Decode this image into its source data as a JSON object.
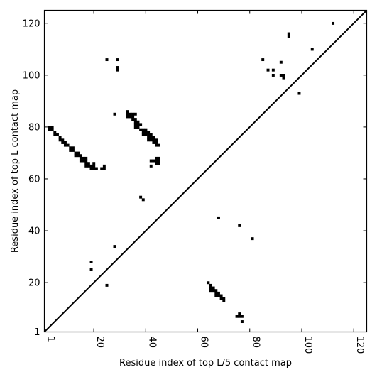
{
  "chart_data": {
    "type": "scatter",
    "title": "",
    "xlabel": "Residue index of top L/5 contact map",
    "ylabel": "Residue index of top L contact map",
    "xlim": [
      1,
      125
    ],
    "ylim": [
      1,
      125
    ],
    "x_ticks": [
      1,
      20,
      40,
      60,
      80,
      100,
      120
    ],
    "x_tick_labels": [
      "1",
      "20",
      "40",
      "60",
      "80",
      "100",
      "120"
    ],
    "y_ticks": [
      1,
      20,
      40,
      60,
      80,
      100,
      120
    ],
    "y_tick_labels": [
      "1",
      "20",
      "40",
      "60",
      "80",
      "100",
      "120"
    ],
    "grid": false,
    "diagonal": true,
    "colors": {
      "marker": "#000000",
      "axis": "#000000",
      "background": "#ffffff"
    },
    "series": [
      {
        "region": "upper",
        "points": [
          [
            3,
            80
          ],
          [
            4,
            80
          ],
          [
            3,
            79
          ],
          [
            4,
            79
          ],
          [
            5,
            78
          ],
          [
            5,
            77
          ],
          [
            6,
            77
          ],
          [
            7,
            76
          ],
          [
            7,
            75
          ],
          [
            8,
            75
          ],
          [
            8,
            74
          ],
          [
            9,
            74
          ],
          [
            9,
            73
          ],
          [
            10,
            73
          ],
          [
            11,
            72
          ],
          [
            11,
            71
          ],
          [
            12,
            72
          ],
          [
            12,
            71
          ],
          [
            13,
            70
          ],
          [
            13,
            69
          ],
          [
            14,
            70
          ],
          [
            14,
            69
          ],
          [
            15,
            69
          ],
          [
            15,
            68
          ],
          [
            15,
            67
          ],
          [
            16,
            68
          ],
          [
            16,
            67
          ],
          [
            17,
            68
          ],
          [
            17,
            67
          ],
          [
            17,
            66
          ],
          [
            17,
            65
          ],
          [
            18,
            66
          ],
          [
            18,
            65
          ],
          [
            19,
            65
          ],
          [
            19,
            64
          ],
          [
            20,
            66
          ],
          [
            20,
            65
          ],
          [
            20,
            64
          ],
          [
            21,
            64
          ],
          [
            23,
            64
          ],
          [
            24,
            65
          ],
          [
            24,
            64
          ],
          [
            25,
            106
          ],
          [
            29,
            106
          ],
          [
            29,
            103
          ],
          [
            29,
            102
          ],
          [
            28,
            85
          ],
          [
            33,
            86
          ],
          [
            33,
            85
          ],
          [
            33,
            84
          ],
          [
            34,
            85
          ],
          [
            34,
            84
          ],
          [
            35,
            85
          ],
          [
            35,
            84
          ],
          [
            35,
            83
          ],
          [
            36,
            85
          ],
          [
            36,
            83
          ],
          [
            36,
            82
          ],
          [
            36,
            81
          ],
          [
            36,
            80
          ],
          [
            37,
            82
          ],
          [
            37,
            81
          ],
          [
            37,
            80
          ],
          [
            38,
            81
          ],
          [
            38,
            79
          ],
          [
            39,
            79
          ],
          [
            39,
            78
          ],
          [
            39,
            77
          ],
          [
            40,
            79
          ],
          [
            40,
            78
          ],
          [
            40,
            77
          ],
          [
            41,
            78
          ],
          [
            41,
            77
          ],
          [
            41,
            76
          ],
          [
            41,
            75
          ],
          [
            42,
            77
          ],
          [
            42,
            76
          ],
          [
            42,
            75
          ],
          [
            43,
            76
          ],
          [
            43,
            75
          ],
          [
            43,
            74
          ],
          [
            44,
            75
          ],
          [
            44,
            74
          ],
          [
            44,
            73
          ],
          [
            45,
            73
          ],
          [
            42,
            67
          ],
          [
            43,
            67
          ],
          [
            44,
            68
          ],
          [
            44,
            67
          ],
          [
            44,
            66
          ],
          [
            45,
            68
          ],
          [
            45,
            67
          ],
          [
            45,
            66
          ],
          [
            42,
            65
          ],
          [
            38,
            53
          ],
          [
            39,
            52
          ],
          [
            28,
            34
          ],
          [
            19,
            28
          ],
          [
            19,
            25
          ],
          [
            25,
            19
          ],
          [
            85,
            106
          ],
          [
            87,
            102
          ],
          [
            89,
            102
          ],
          [
            89,
            100
          ],
          [
            92,
            105
          ],
          [
            92,
            100
          ],
          [
            93,
            100
          ],
          [
            93,
            99
          ],
          [
            95,
            116
          ],
          [
            95,
            115
          ],
          [
            99,
            93
          ],
          [
            104,
            110
          ],
          [
            112,
            120
          ]
        ]
      },
      {
        "region": "lower",
        "points": [
          [
            64,
            20
          ],
          [
            65,
            19
          ],
          [
            65,
            18
          ],
          [
            65,
            17
          ],
          [
            66,
            18
          ],
          [
            66,
            17
          ],
          [
            67,
            17
          ],
          [
            67,
            16
          ],
          [
            67,
            15
          ],
          [
            68,
            16
          ],
          [
            68,
            15
          ],
          [
            69,
            15
          ],
          [
            69,
            14
          ],
          [
            70,
            14
          ],
          [
            70,
            13
          ],
          [
            68,
            45
          ],
          [
            76,
            42
          ],
          [
            81,
            37
          ],
          [
            75,
            7
          ],
          [
            76,
            8
          ],
          [
            76,
            7
          ],
          [
            77,
            7
          ],
          [
            77,
            5
          ]
        ]
      }
    ]
  }
}
